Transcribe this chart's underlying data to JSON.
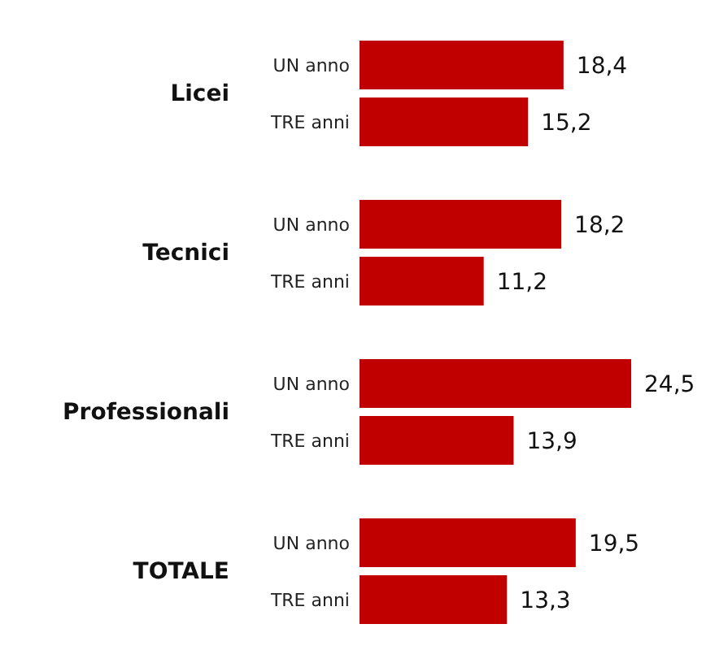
{
  "chart_data": {
    "type": "bar",
    "orientation": "horizontal",
    "categories": [
      "Licei",
      "Tecnici",
      "Professionali",
      "TOTALE"
    ],
    "series": [
      {
        "name": "UN anno",
        "color": "#c00000",
        "values": [
          18.4,
          18.2,
          24.5,
          19.5
        ],
        "value_labels": [
          "18,4",
          "18,2",
          "24,5",
          "19,5"
        ]
      },
      {
        "name": "TRE anni",
        "color": "#c00000",
        "values": [
          15.2,
          11.2,
          13.9,
          13.3
        ],
        "value_labels": [
          "15,2",
          "11,2",
          "13,9",
          "13,3"
        ]
      }
    ],
    "legend": false,
    "grid": false
  }
}
